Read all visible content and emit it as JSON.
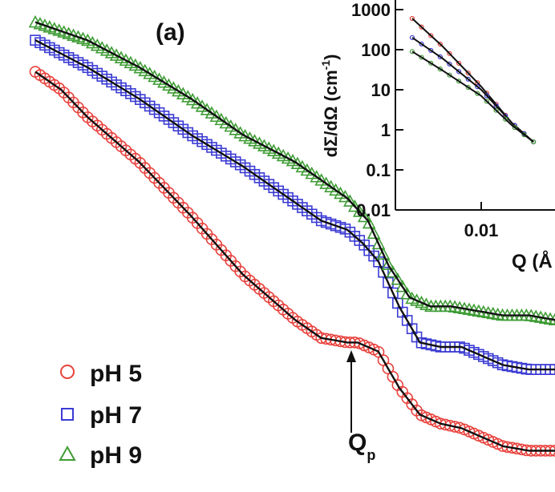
{
  "chart_data": [
    {
      "type": "scatter",
      "panel_label": "(a)",
      "series": [
        {
          "name": "pH 5",
          "marker": "circle",
          "color": "#e8413c",
          "x": [
            0.0,
            0.05,
            0.1,
            0.15,
            0.2,
            0.3,
            0.4,
            0.5,
            0.55,
            0.6,
            0.62,
            0.66,
            0.7,
            0.74,
            0.78,
            0.82,
            0.86,
            0.9,
            0.95,
            1.0
          ],
          "y": [
            0.88,
            0.84,
            0.78,
            0.73,
            0.68,
            0.56,
            0.43,
            0.33,
            0.29,
            0.28,
            0.28,
            0.26,
            0.18,
            0.12,
            0.1,
            0.09,
            0.07,
            0.05,
            0.04,
            0.04
          ]
        },
        {
          "name": "pH 7",
          "marker": "square",
          "color": "#3b3bd4",
          "x": [
            0.0,
            0.05,
            0.1,
            0.2,
            0.3,
            0.4,
            0.5,
            0.55,
            0.6,
            0.63,
            0.66,
            0.7,
            0.74,
            0.78,
            0.82,
            0.86,
            0.9,
            0.95,
            1.0
          ],
          "y": [
            0.95,
            0.92,
            0.89,
            0.82,
            0.74,
            0.67,
            0.59,
            0.55,
            0.53,
            0.5,
            0.46,
            0.36,
            0.28,
            0.27,
            0.27,
            0.25,
            0.23,
            0.22,
            0.22
          ]
        },
        {
          "name": "pH 9",
          "marker": "triangle",
          "color": "#3f9c35",
          "x": [
            0.0,
            0.05,
            0.1,
            0.2,
            0.3,
            0.4,
            0.5,
            0.55,
            0.6,
            0.64,
            0.68,
            0.72,
            0.76,
            0.8,
            0.85,
            0.9,
            0.95,
            1.0
          ],
          "y": [
            0.99,
            0.97,
            0.95,
            0.89,
            0.82,
            0.74,
            0.68,
            0.64,
            0.6,
            0.55,
            0.45,
            0.38,
            0.36,
            0.36,
            0.35,
            0.34,
            0.34,
            0.33
          ]
        }
      ],
      "legend": {
        "placement": "bottom-left"
      },
      "annotation": {
        "label": "Q",
        "subscript": "p",
        "arrow": "up"
      }
    },
    {
      "type": "line",
      "inset": true,
      "xscale": "log",
      "yscale": "log",
      "xlabel": "Q (Å",
      "ylabel": "dΣ/dΩ (cm",
      "ylabel_superscript": "-1",
      "ylabel_close": ")",
      "xticks": [
        "0.01"
      ],
      "yticks": [
        "1000",
        "100",
        "10",
        "1",
        "0.1",
        "0.01"
      ],
      "ylim": [
        0.01,
        1000
      ],
      "series": [
        {
          "color": "#e8413c",
          "x": [
            0.004,
            0.006,
            0.01,
            0.015,
            0.02
          ],
          "y": [
            600,
            120,
            12,
            1.5,
            0.5
          ]
        },
        {
          "color": "#3b3bd4",
          "x": [
            0.004,
            0.006,
            0.01,
            0.015,
            0.02
          ],
          "y": [
            200,
            60,
            10,
            1.5,
            0.5
          ]
        },
        {
          "color": "#3f9c35",
          "x": [
            0.004,
            0.006,
            0.01,
            0.015,
            0.02
          ],
          "y": [
            90,
            30,
            7,
            1.3,
            0.5
          ]
        }
      ]
    }
  ]
}
